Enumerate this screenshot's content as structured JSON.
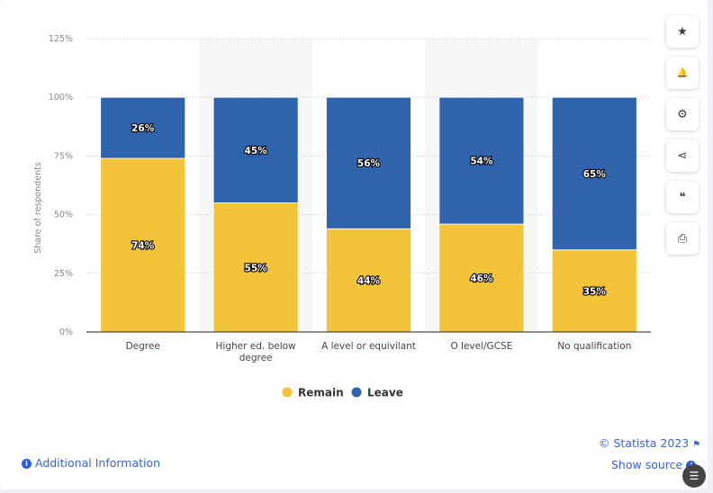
{
  "chart_data": {
    "type": "bar",
    "stacked": true,
    "categories": [
      "Degree",
      "Higher ed. below degree",
      "A level or equivilant",
      "O level/GCSE",
      "No qualification"
    ],
    "category_lines": [
      [
        "Degree"
      ],
      [
        "Higher ed. below",
        "degree"
      ],
      [
        "A level or equivilant"
      ],
      [
        "O level/GCSE"
      ],
      [
        "No qualification"
      ]
    ],
    "series": [
      {
        "name": "Remain",
        "color": "#f3c33a",
        "values": [
          74,
          55,
          44,
          46,
          35
        ],
        "labels": [
          "74%",
          "55%",
          "44%",
          "46%",
          "35%"
        ]
      },
      {
        "name": "Leave",
        "color": "#2f63ac",
        "values": [
          26,
          45,
          56,
          54,
          65
        ],
        "labels": [
          "26%",
          "45%",
          "56%",
          "54%",
          "65%"
        ]
      }
    ],
    "ylabel": "Share of respondents",
    "ylim": [
      0,
      125
    ],
    "yticks": [
      "0%",
      "25%",
      "50%",
      "75%",
      "100%",
      "125%"
    ],
    "grid": true,
    "legend_position": "bottom"
  },
  "sidebar": [
    {
      "icon": "star-icon",
      "glyph": "★"
    },
    {
      "icon": "bell-icon",
      "glyph": "🔔"
    },
    {
      "icon": "gear-icon",
      "glyph": "⚙"
    },
    {
      "icon": "share-icon",
      "glyph": "⋖"
    },
    {
      "icon": "quote-icon",
      "glyph": "❝"
    },
    {
      "icon": "print-icon",
      "glyph": "⎙"
    }
  ],
  "footer": {
    "additional_info": "Additional Information",
    "copyright": "© Statista 2023",
    "show_source": "Show source",
    "info_glyph": "i"
  }
}
